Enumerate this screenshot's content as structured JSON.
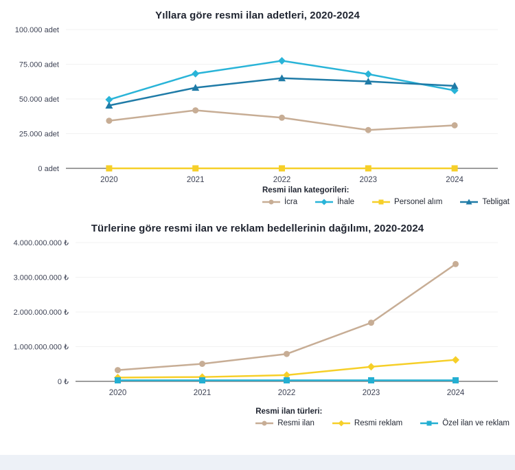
{
  "page": {
    "background_color": "#ffffff",
    "footer_band_color": "#edf1f7",
    "accent_colors": {
      "tan": "#c7ad95",
      "cyan": "#29b4d8",
      "yellow": "#f6cf28",
      "dark_blue": "#1f7ba7",
      "teal": "#24afd2",
      "axis_gray": "#9d9d9d",
      "grid_gray": "#f1f1f1",
      "text_dark": "#1f2430"
    }
  },
  "chart_data": [
    {
      "type": "line",
      "title": "Yıllara göre resmi ilan adetleri, 2020-2024",
      "legend_title": "Resmi ilan kategorileri:",
      "legend_position": "bottom-right",
      "grid": true,
      "categories": [
        "2020",
        "2021",
        "2022",
        "2023",
        "2024"
      ],
      "ylim": [
        0,
        100000
      ],
      "y_ticks": [
        {
          "label": "100.000 adet",
          "value": 100000
        },
        {
          "label": "75.000 adet",
          "value": 75000
        },
        {
          "label": "50.000 adet",
          "value": 50000
        },
        {
          "label": "25.000 adet",
          "value": 25000
        },
        {
          "label": "0 adet",
          "value": 0
        }
      ],
      "series": [
        {
          "name": "İcra",
          "color": "#c7ad95",
          "marker": "circle",
          "values": [
            34300,
            41800,
            36500,
            27600,
            31000
          ]
        },
        {
          "name": "İhale",
          "color": "#29b4d8",
          "marker": "diamond",
          "values": [
            49500,
            68200,
            77500,
            67900,
            56100
          ]
        },
        {
          "name": "Personel alım",
          "color": "#f6cf28",
          "marker": "square",
          "values": [
            0,
            0,
            0,
            0,
            0
          ]
        },
        {
          "name": "Tebligat",
          "color": "#1f7ba7",
          "marker": "triangle",
          "values": [
            45300,
            58100,
            65000,
            62600,
            59400
          ]
        }
      ]
    },
    {
      "type": "line",
      "title": "Türlerine göre resmi ilan ve reklam bedellerinin dağılımı, 2020-2024",
      "legend_title": "Resmi ilan türleri:",
      "legend_position": "bottom-right",
      "grid": true,
      "categories": [
        "2020",
        "2021",
        "2022",
        "2023",
        "2024"
      ],
      "ylim": [
        0,
        4000000000
      ],
      "y_ticks": [
        {
          "label": "4.000.000.000 ₺",
          "value": 4000000000
        },
        {
          "label": "3.000.000.000 ₺",
          "value": 3000000000
        },
        {
          "label": "2.000.000.000 ₺",
          "value": 2000000000
        },
        {
          "label": "1.000.000.000 ₺",
          "value": 1000000000
        },
        {
          "label": "0 ₺",
          "value": 0
        }
      ],
      "series": [
        {
          "name": "Resmi ilan",
          "color": "#c7ad95",
          "marker": "circle",
          "values": [
            325000000,
            505000000,
            790000000,
            1690000000,
            3380000000
          ]
        },
        {
          "name": "Resmi reklam",
          "color": "#f6cf28",
          "marker": "diamond",
          "values": [
            110000000,
            125000000,
            180000000,
            420000000,
            620000000
          ]
        },
        {
          "name": "Özel ilan ve reklam",
          "color": "#24afd2",
          "marker": "square",
          "values": [
            30000000,
            30000000,
            30000000,
            30000000,
            30000000
          ]
        }
      ]
    }
  ]
}
